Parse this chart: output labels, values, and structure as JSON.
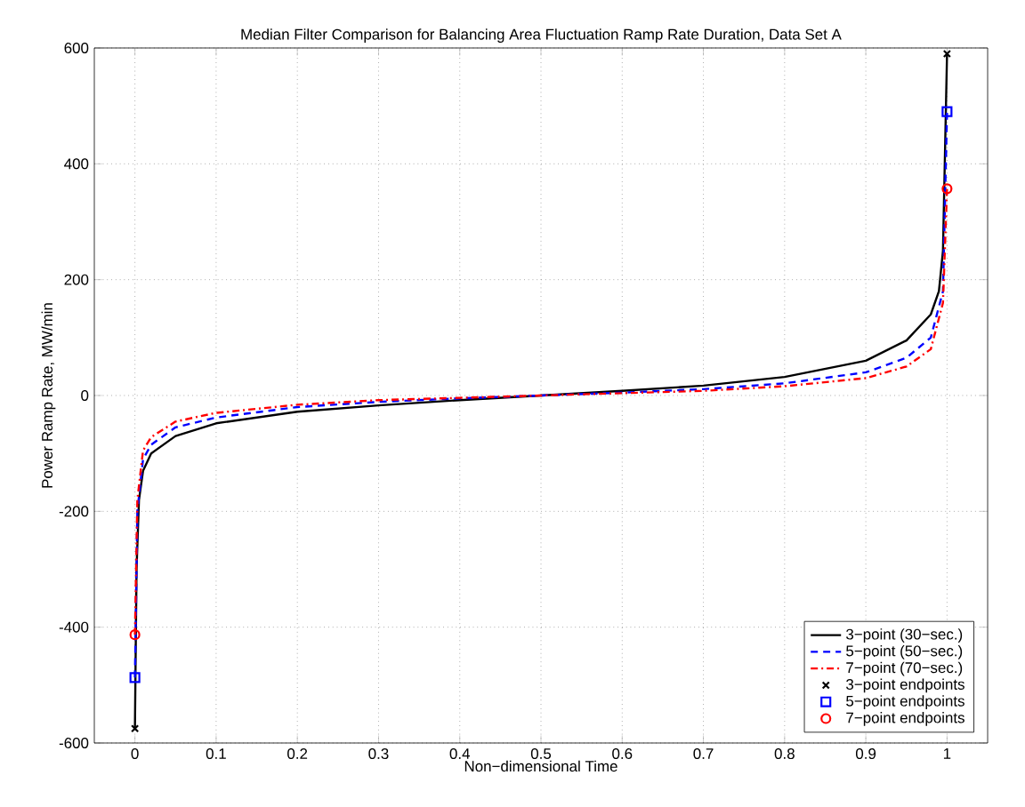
{
  "chart_data": {
    "type": "line",
    "title": "Median Filter Comparison for Balancing Area Fluctuation Ramp Rate Duration, Data Set A",
    "xlabel": "Non−dimensional Time",
    "ylabel": "Power Ramp Rate, MW/min",
    "xlim": [
      -0.05,
      1.05
    ],
    "ylim": [
      -600,
      600
    ],
    "xticks": [
      0,
      0.1,
      0.2,
      0.3,
      0.4,
      0.5,
      0.6,
      0.7,
      0.8,
      0.9,
      1
    ],
    "yticks": [
      -600,
      -400,
      -200,
      0,
      200,
      400,
      600
    ],
    "grid": true,
    "legend": "bottom right",
    "series": [
      {
        "name": "3−point (30−sec.)",
        "color": "#000000",
        "line_style": "solid",
        "marker": "none",
        "x": [
          0,
          0.002,
          0.005,
          0.01,
          0.02,
          0.05,
          0.1,
          0.2,
          0.3,
          0.4,
          0.5,
          0.6,
          0.7,
          0.8,
          0.9,
          0.95,
          0.98,
          0.99,
          0.995,
          1
        ],
        "values": [
          -575,
          -300,
          -180,
          -130,
          -100,
          -70,
          -48,
          -28,
          -17,
          -8,
          0,
          8,
          17,
          32,
          60,
          95,
          140,
          180,
          250,
          590
        ]
      },
      {
        "name": "5−point (50−sec.)",
        "color": "#0000ff",
        "line_style": "dashed",
        "marker": "none",
        "x": [
          0,
          0.003,
          0.01,
          0.02,
          0.05,
          0.1,
          0.2,
          0.3,
          0.4,
          0.5,
          0.6,
          0.7,
          0.8,
          0.9,
          0.95,
          0.98,
          0.995,
          1
        ],
        "values": [
          -487,
          -200,
          -110,
          -85,
          -55,
          -38,
          -20,
          -11,
          -5,
          0,
          5,
          11,
          21,
          40,
          65,
          100,
          180,
          490
        ]
      },
      {
        "name": "7−point (70−sec.)",
        "color": "#ff0000",
        "line_style": "dashdotted",
        "marker": "none",
        "x": [
          0,
          0.003,
          0.01,
          0.02,
          0.05,
          0.1,
          0.2,
          0.3,
          0.4,
          0.5,
          0.6,
          0.7,
          0.8,
          0.9,
          0.95,
          0.98,
          0.995,
          1
        ],
        "values": [
          -413,
          -180,
          -95,
          -72,
          -45,
          -30,
          -16,
          -8,
          -4,
          0,
          4,
          8,
          16,
          30,
          50,
          80,
          160,
          357
        ]
      },
      {
        "name": "3−point endpoints",
        "type": "scatter",
        "color": "#000000",
        "marker": "cross",
        "x": [
          0,
          1
        ],
        "values": [
          -575,
          590
        ]
      },
      {
        "name": "5−point endpoints",
        "type": "scatter",
        "color": "#0000ff",
        "marker": "square",
        "x": [
          0,
          1
        ],
        "values": [
          -487,
          490
        ]
      },
      {
        "name": "7−point endpoints",
        "type": "scatter",
        "color": "#ff0000",
        "marker": "circle",
        "x": [
          0,
          1
        ],
        "values": [
          -413,
          357
        ]
      }
    ]
  }
}
